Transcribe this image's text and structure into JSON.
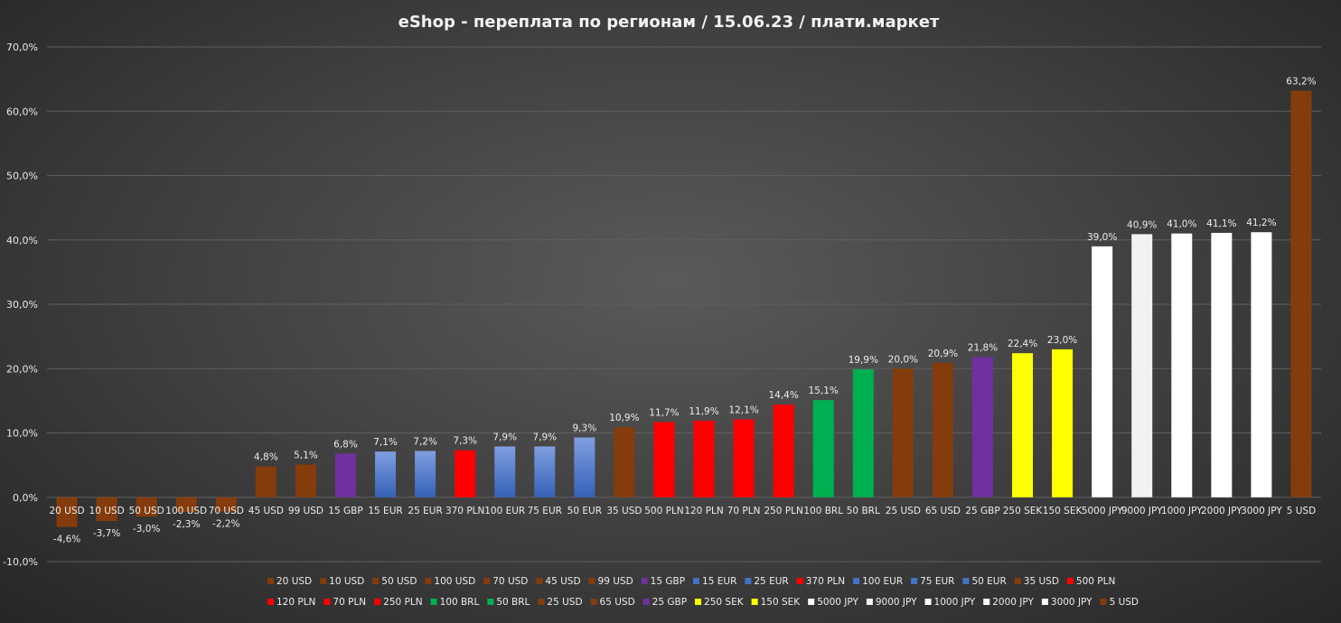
{
  "chart_data": {
    "type": "bar",
    "title": "eShop - переплата по регионам / 15.06.23 / плати.маркет",
    "xlabel": "",
    "ylabel": "",
    "ylim": [
      -10,
      70
    ],
    "ytick_values": [
      -10,
      0,
      10,
      20,
      30,
      40,
      50,
      60,
      70
    ],
    "ytick_labels": [
      "-10,0%",
      "0,0%",
      "10,0%",
      "20,0%",
      "30,0%",
      "40,0%",
      "50,0%",
      "60,0%",
      "70,0%"
    ],
    "grid": true,
    "legend_position": "bottom",
    "categories": [
      "20 USD",
      "10 USD",
      "50 USD",
      "100 USD",
      "70 USD",
      "45 USD",
      "99 USD",
      "15 GBP",
      "15 EUR",
      "25 EUR",
      "370 PLN",
      "100 EUR",
      "75 EUR",
      "50 EUR",
      "35 USD",
      "500 PLN",
      "120 PLN",
      "70 PLN",
      "250 PLN",
      "100 BRL",
      "50 BRL",
      "25 USD",
      "65 USD",
      "25 GBP",
      "250 SEK",
      "150 SEK",
      "5000 JPY",
      "9000 JPY",
      "1000 JPY",
      "2000 JPY",
      "3000 JPY",
      "5 USD"
    ],
    "values": [
      -4.6,
      -3.7,
      -3.0,
      -2.3,
      -2.2,
      4.8,
      5.1,
      6.8,
      7.1,
      7.2,
      7.3,
      7.9,
      7.9,
      9.3,
      10.9,
      11.7,
      11.9,
      12.1,
      14.4,
      15.1,
      19.9,
      20.0,
      20.9,
      21.8,
      22.4,
      23.0,
      39.0,
      40.9,
      41.0,
      41.1,
      41.2,
      63.2
    ],
    "data_labels": [
      "-4,6%",
      "-3,7%",
      "-3,0%",
      "-2,3%",
      "-2,2%",
      "4,8%",
      "5,1%",
      "6,8%",
      "7,1%",
      "7,2%",
      "7,3%",
      "7,9%",
      "7,9%",
      "9,3%",
      "10,9%",
      "11,7%",
      "11,9%",
      "12,1%",
      "14,4%",
      "15,1%",
      "19,9%",
      "20,0%",
      "20,9%",
      "21,8%",
      "22,4%",
      "23,0%",
      "39,0%",
      "40,9%",
      "41,0%",
      "41,1%",
      "41,2%",
      "63,2%"
    ],
    "colors": [
      "#843c0c",
      "#843c0c",
      "#843c0c",
      "#843c0c",
      "#843c0c",
      "#843c0c",
      "#843c0c",
      "#7030a0",
      "#4472c4",
      "#4472c4",
      "#ff0000",
      "#4472c4",
      "#4472c4",
      "#4472c4",
      "#843c0c",
      "#ff0000",
      "#ff0000",
      "#ff0000",
      "#ff0000",
      "#00b050",
      "#00b050",
      "#843c0c",
      "#843c0c",
      "#7030a0",
      "#ffff00",
      "#ffff00",
      "#ffffff",
      "#f2f2f2",
      "#ffffff",
      "#ffffff",
      "#ffffff",
      "#843c0c"
    ]
  }
}
